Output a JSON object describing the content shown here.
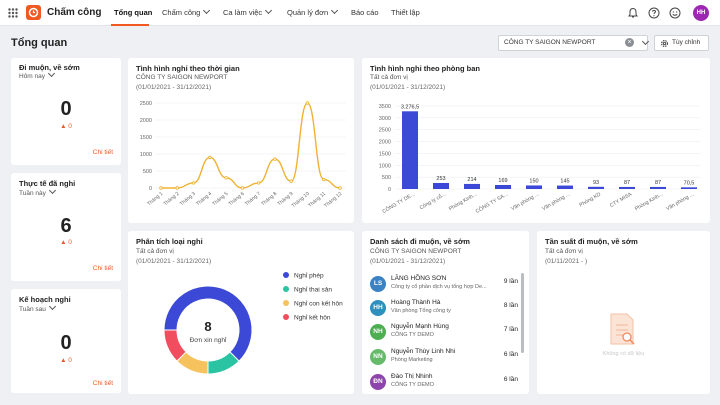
{
  "app": {
    "title": "Chấm công"
  },
  "nav": [
    {
      "label": "Tổng quan",
      "active": true
    },
    {
      "label": "Chấm công",
      "caret": true
    },
    {
      "label": "Ca làm việc",
      "caret": true
    },
    {
      "label": "Quản lý đơn",
      "caret": true
    },
    {
      "label": "Báo cáo"
    },
    {
      "label": "Thiết lập"
    }
  ],
  "user": {
    "initials": "HH"
  },
  "page": {
    "title": "Tổng quan",
    "company": "CÔNG TY SAIGON NEWPORT",
    "clear_icon": "×",
    "customize_label": "Tùy chỉnh"
  },
  "stats": [
    {
      "title": "Đi muộn, về sớm",
      "range": "Hôm nay",
      "value": "0",
      "delta": "▲ 0",
      "link": "Chi tiết"
    },
    {
      "title": "Thực tế đã nghỉ",
      "range": "Tuần này",
      "value": "6",
      "delta": "▲ 0",
      "link": "Chi tiết"
    },
    {
      "title": "Kế hoạch nghỉ",
      "range": "Tuần sau",
      "value": "0",
      "delta": "▲ 0",
      "link": "Chi tiết"
    }
  ],
  "time_chart": {
    "title": "Tình hình nghỉ theo thời gian",
    "company": "CÔNG TY SAIGON NEWPORT",
    "period": "(01/01/2021 - 31/12/2021)"
  },
  "dept_chart": {
    "title": "Tình hình nghỉ theo phòng ban",
    "unit": "Tất cả đơn vị",
    "period": "(01/01/2021 - 31/12/2021)"
  },
  "leave_types": {
    "title": "Phân tích loại nghỉ",
    "unit": "Tất cả đơn vị",
    "period": "(01/01/2021 - 31/12/2021)",
    "total": "8",
    "total_label": "Đơn xin nghỉ"
  },
  "late_list": {
    "title": "Danh sách đi muộn, về sớm",
    "company": "CÔNG TY SAIGON NEWPORT",
    "period": "(01/01/2021 - 31/12/2021)",
    "people": [
      {
        "initials": "LS",
        "name": "LĂNG HỒNG SƠN",
        "org": "Công ty cổ phần dịch vụ tổng hợp De...",
        "count": "9 lần",
        "color": "#3b82c4"
      },
      {
        "initials": "HH",
        "name": "Hoàng Thành Hà",
        "org": "Văn phòng Tổng công ty",
        "count": "8 lần",
        "color": "#2f8fbf"
      },
      {
        "initials": "NH",
        "name": "Nguyễn Mạnh Hùng",
        "org": "CÔNG TY DEMO",
        "count": "7 lần",
        "color": "#4caf50"
      },
      {
        "initials": "NN",
        "name": "Nguyễn Thùy Linh Nhi",
        "org": "Phòng Marketing",
        "count": "6 lần",
        "color": "#66bb6a"
      },
      {
        "initials": "ĐN",
        "name": "Đào Thị Nhinh",
        "org": "CÔNG TY DEMO",
        "count": "6 lần",
        "color": "#8e44ad"
      }
    ]
  },
  "frequency": {
    "title": "Tần suất đi muộn, về sớm",
    "unit": "Tất cả đơn vị",
    "period": "(01/11/2021 - )",
    "empty_text": "Không có dữ liệu"
  },
  "chart_data": [
    {
      "type": "line",
      "title": "Tình hình nghỉ theo thời gian",
      "categories": [
        "Tháng 1",
        "Tháng 2",
        "Tháng 3",
        "Tháng 4",
        "Tháng 5",
        "Tháng 6",
        "Tháng 7",
        "Tháng 8",
        "Tháng 9",
        "Tháng 10",
        "Tháng 11",
        "Tháng 12"
      ],
      "series": [
        {
          "values": [
            0,
            0,
            150,
            900,
            300,
            0,
            150,
            850,
            200,
            2500,
            250,
            0
          ]
        }
      ],
      "yticks": [
        "0",
        "500",
        "1000",
        "1500",
        "2000",
        "2500"
      ],
      "ylim": [
        0,
        2500
      ],
      "color": "#f0b232",
      "grid": true
    },
    {
      "type": "bar",
      "title": "Tình hình nghỉ theo phòng ban",
      "categories": [
        "CÔNG TY DE...",
        "Công ty cổ...",
        "Phòng Kinh...",
        "CÔNG TY SA...",
        "Văn phòng ...",
        "Văn phòng ...",
        "Phòng KD",
        "CTY MISA",
        "Phòng Kinh...",
        "Văn phòng ..."
      ],
      "values": [
        3276.5,
        253,
        214,
        169,
        150,
        145,
        93,
        87,
        87,
        70.5
      ],
      "value_labels": [
        "3.276,5",
        "253",
        "214",
        "169",
        "150",
        "145",
        "93",
        "87",
        "87",
        "70,5"
      ],
      "yticks": [
        "0",
        "500",
        "1000",
        "1500",
        "2000",
        "2500",
        "3000",
        "3500"
      ],
      "ylim": [
        0,
        3500
      ],
      "color": "#3b49d6",
      "grid": true
    },
    {
      "type": "pie",
      "title": "Phân tích loại nghỉ",
      "categories": [
        "Nghỉ phép",
        "Nghỉ thai sản",
        "Nghỉ con kết hôn",
        "Nghỉ kết hôn"
      ],
      "values": [
        5,
        1,
        1,
        1
      ],
      "colors": [
        "#3b49d6",
        "#2bc4a3",
        "#f5c25d",
        "#f04e5e"
      ],
      "center_value": "8",
      "center_label": "Đơn xin nghỉ"
    }
  ]
}
